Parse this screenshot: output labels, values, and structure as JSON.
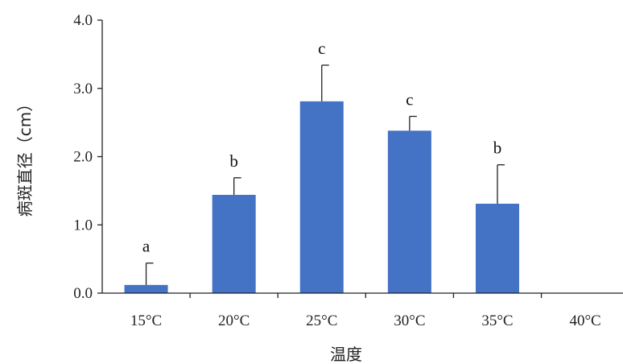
{
  "chart_data": {
    "type": "bar",
    "categories": [
      "15°C",
      "20°C",
      "25°C",
      "30°C",
      "35°C",
      "40°C"
    ],
    "values": [
      0.12,
      1.44,
      2.81,
      2.38,
      1.31,
      0
    ],
    "error_plus": [
      0.32,
      0.25,
      0.53,
      0.21,
      0.57,
      0
    ],
    "significance_labels": [
      "a",
      "b",
      "c",
      "c",
      "b",
      ""
    ],
    "title": "",
    "xlabel": "温度",
    "ylabel": "病斑直径（cm）",
    "ylim": [
      0,
      4
    ],
    "yticks": [
      "0.0",
      "1.0",
      "2.0",
      "3.0",
      "4.0"
    ],
    "grid": false,
    "legend": "none",
    "bar_color": "#4472c4"
  }
}
